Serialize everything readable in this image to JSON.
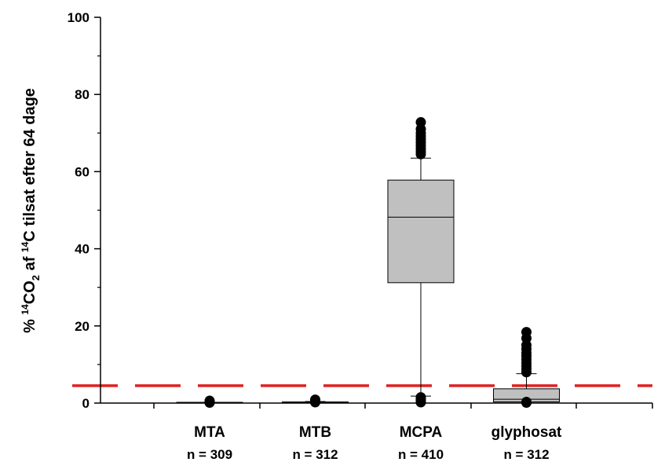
{
  "chart_data": {
    "type": "box",
    "ylabel_parts": [
      "% ",
      "14",
      "CO",
      "2",
      " af ",
      "14",
      "C tilsat efter 64 dage"
    ],
    "ylim": [
      0,
      100
    ],
    "yticks": [
      0,
      20,
      40,
      60,
      80,
      100
    ],
    "categories": [
      "MTA",
      "MTB",
      "MCPA",
      "glyphosat"
    ],
    "n_labels": [
      "n = 309",
      "n = 312",
      "n = 410",
      "n = 312"
    ],
    "reference_line": {
      "value": 4.5,
      "color": "#e02020",
      "style": "dashed"
    },
    "box_color": "#c0c0c0",
    "series": [
      {
        "q1": 0,
        "median": 0.1,
        "q3": 0.2,
        "whisker_low": 0,
        "whisker_high": 0.2,
        "outliers": [
          0.1,
          0.2,
          0.3,
          0.4,
          0.5,
          0.6
        ]
      },
      {
        "q1": 0.1,
        "median": 0.2,
        "q3": 0.3,
        "whisker_low": 0,
        "whisker_high": 0.4,
        "outliers": [
          0.2,
          0.4,
          0.6,
          0.8,
          0.9
        ]
      },
      {
        "q1": 31.2,
        "median": 48.2,
        "q3": 57.8,
        "whisker_low": 1.8,
        "whisker_high": 63.5,
        "outliers": [
          0.2,
          0.5,
          0.9,
          1.2,
          1.5,
          64.5,
          65.2,
          66.0,
          66.8,
          67.6,
          68.4,
          69.2,
          70.0,
          71.0,
          72.8
        ]
      },
      {
        "q1": 0.3,
        "median": 1.0,
        "q3": 3.7,
        "whisker_low": 0,
        "whisker_high": 7.6,
        "outliers": [
          0.1,
          0.3,
          8.0,
          8.8,
          9.6,
          10.4,
          11.3,
          12.2,
          13.0,
          14.0,
          15.0,
          16.8,
          18.4
        ]
      }
    ]
  }
}
